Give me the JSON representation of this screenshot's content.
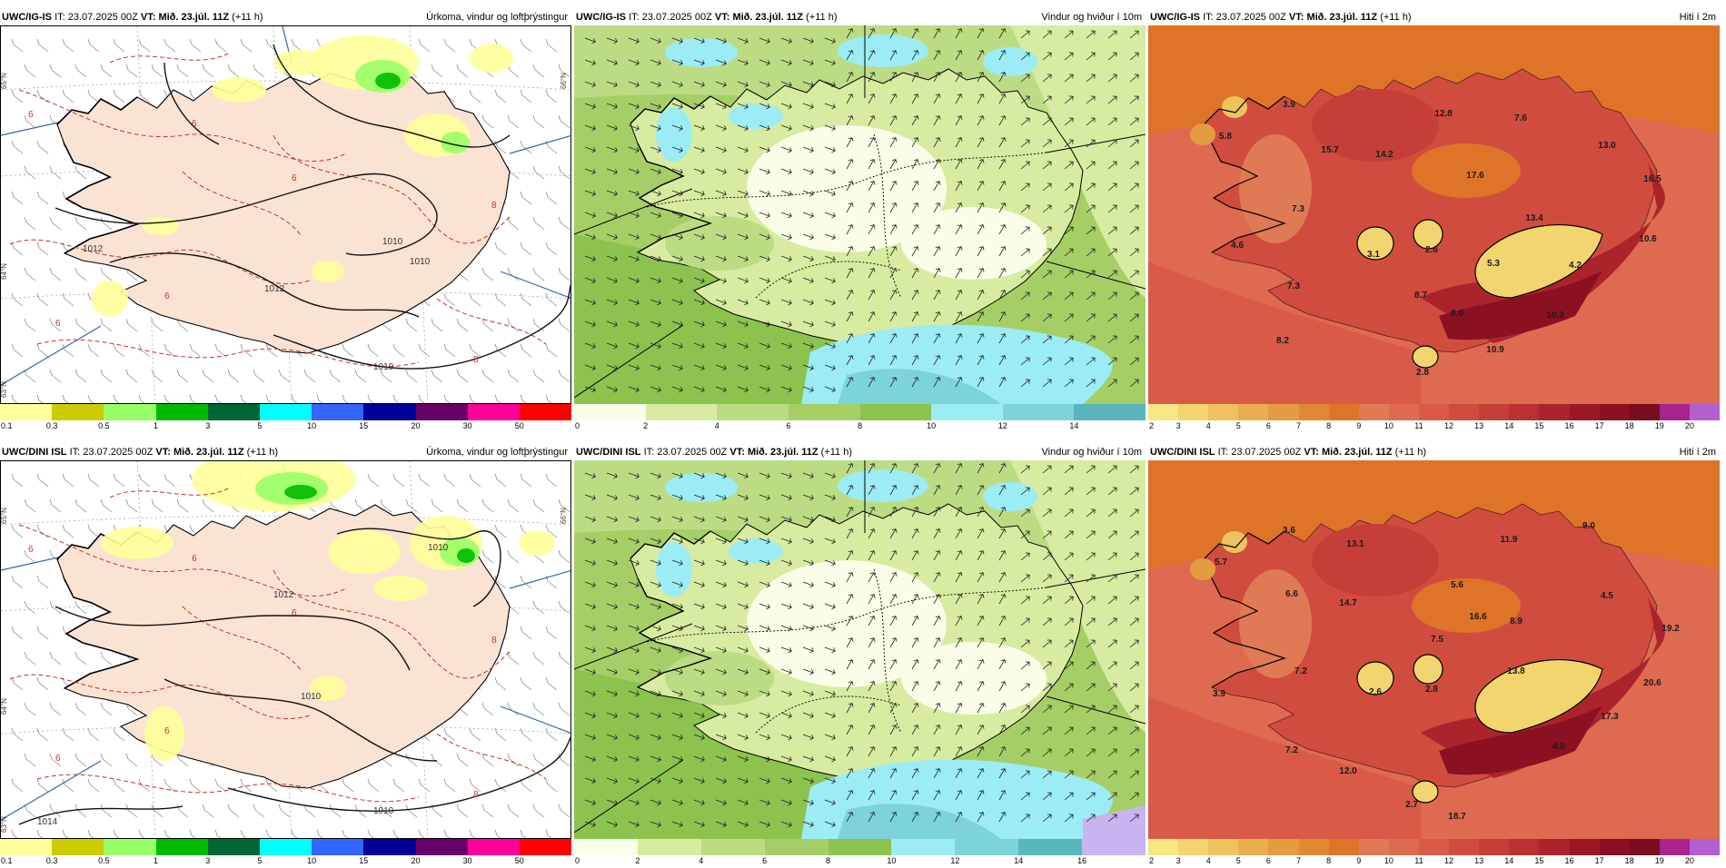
{
  "rows": [
    {
      "id": "top",
      "panels": [
        {
          "model": "UWC/IG-IS",
          "it_label": "IT:",
          "it_value": "23.07.2025 00Z",
          "vt_label": "VT:",
          "vt_value": "Mið. 23.júl. 11Z",
          "lead": "(+11 h)",
          "title": "Úrkoma, vindur og loftþrýstingur",
          "kind": "precip",
          "isobar_labels": [
            "1012",
            "1012",
            "1010",
            "1010",
            "1010"
          ],
          "grid_labels": [
            "65°N",
            "64°N",
            "63°N",
            "66°N"
          ],
          "legend_ticks": [
            "0.1",
            "0.3",
            "0.5",
            "1",
            "3",
            "5",
            "10",
            "15",
            "20",
            "30",
            "50"
          ],
          "legend_colors": [
            "#ffff99",
            "#cccc00",
            "#99ff66",
            "#00bb00",
            "#006633",
            "#00ffff",
            "#3366ff",
            "#000099",
            "#660066",
            "#ff0099",
            "#ff0000"
          ]
        },
        {
          "model": "UWC/IG-IS",
          "it_label": "IT:",
          "it_value": "23.07.2025 00Z",
          "vt_label": "VT:",
          "vt_value": "Mið. 23.júl. 11Z",
          "lead": "(+11 h)",
          "title": "Vindur og hviður í 10m",
          "kind": "wind",
          "legend_ticks": [
            "0",
            "2",
            "4",
            "6",
            "8",
            "10",
            "12",
            "14"
          ],
          "legend_colors": [
            "#fafde8",
            "#d7eca0",
            "#bcdc84",
            "#a5cf66",
            "#8cc34f",
            "#9cecf5",
            "#7dd3da",
            "#5ab6bd"
          ]
        },
        {
          "model": "UWC/IG-IS",
          "it_label": "IT:",
          "it_value": "23.07.2025 00Z",
          "vt_label": "VT:",
          "vt_value": "Mið. 23.júl. 11Z",
          "lead": "(+11 h)",
          "title": "Hiti í 2m",
          "kind": "temp",
          "values": [
            "3.9",
            "5.8",
            "15.7",
            "14.2",
            "12.8",
            "7.6",
            "13.0",
            "17.6",
            "16.5",
            "13.4",
            "7.3",
            "4.6",
            "3.1",
            "2.6",
            "5.3",
            "4.2",
            "10.6",
            "7.3",
            "8.7",
            "8.0",
            "10.3",
            "8.2",
            "10.9",
            "2.8"
          ],
          "legend_ticks": [
            "2",
            "3",
            "4",
            "5",
            "6",
            "7",
            "8",
            "9",
            "10",
            "11",
            "12",
            "13",
            "14",
            "15",
            "16",
            "17",
            "18",
            "19",
            "20"
          ],
          "legend_colors": [
            "#f7e684",
            "#f2d56e",
            "#eec35e",
            "#e9af4f",
            "#e59c41",
            "#e18833",
            "#dd7428",
            "#e07a55",
            "#de6a50",
            "#d95a47",
            "#d04c3f",
            "#c63e38",
            "#bb3131",
            "#ac242b",
            "#9b1825",
            "#8a1122",
            "#7a0d20",
            "#a8238d",
            "#b45fd0"
          ]
        }
      ]
    },
    {
      "id": "bottom",
      "panels": [
        {
          "model": "UWC/DINI ISL",
          "it_label": "IT:",
          "it_value": "23.07.2025 00Z",
          "vt_label": "VT:",
          "vt_value": "Mið. 23.júl. 11Z",
          "lead": "(+11 h)",
          "title": "Úrkoma, vindur og loftþrýstingur",
          "kind": "precip",
          "isobar_labels": [
            "1012",
            "1010",
            "1010",
            "1010",
            "1014"
          ],
          "grid_labels": [
            "65°N",
            "64°N",
            "63°N",
            "66°N"
          ],
          "legend_ticks": [
            "0.1",
            "0.3",
            "0.5",
            "1",
            "3",
            "5",
            "10",
            "15",
            "20",
            "30",
            "50"
          ],
          "legend_colors": [
            "#ffff99",
            "#cccc00",
            "#99ff66",
            "#00bb00",
            "#006633",
            "#00ffff",
            "#3366ff",
            "#000099",
            "#660066",
            "#ff0099",
            "#ff0000"
          ]
        },
        {
          "model": "UWC/DINI ISL",
          "it_label": "IT:",
          "it_value": "23.07.2025 00Z",
          "vt_label": "VT:",
          "vt_value": "Mið. 23.júl. 11Z",
          "lead": "(+11 h)",
          "title": "Vindur og hviður í 10m",
          "kind": "wind",
          "legend_ticks": [
            "0",
            "2",
            "4",
            "6",
            "8",
            "10",
            "12",
            "14",
            "16"
          ],
          "legend_colors": [
            "#fafde8",
            "#d7eca0",
            "#bcdc84",
            "#a5cf66",
            "#8cc34f",
            "#9cecf5",
            "#7dd3da",
            "#5ab6bd",
            "#c8b4f0"
          ]
        },
        {
          "model": "UWC/DINI ISL",
          "it_label": "IT:",
          "it_value": "23.07.2025 00Z",
          "vt_label": "VT:",
          "vt_value": "Mið. 23.júl. 11Z",
          "lead": "(+11 h)",
          "title": "Hiti í 2m",
          "kind": "temp",
          "values": [
            "3.6",
            "5.7",
            "13.1",
            "11.9",
            "9.0",
            "6.6",
            "14.7",
            "5.6",
            "16.6",
            "8.9",
            "4.5",
            "7.5",
            "19.2",
            "7.2",
            "13.8",
            "20.6",
            "3.9",
            "2.6",
            "2.8",
            "17.3",
            "7.2",
            "4.0",
            "12.0",
            "2.7",
            "18.7"
          ],
          "legend_ticks": [
            "2",
            "3",
            "4",
            "5",
            "6",
            "7",
            "8",
            "9",
            "10",
            "11",
            "12",
            "13",
            "14",
            "15",
            "16",
            "17",
            "18",
            "19",
            "20"
          ],
          "legend_colors": [
            "#f7e684",
            "#f2d56e",
            "#eec35e",
            "#e9af4f",
            "#e59c41",
            "#e18833",
            "#dd7428",
            "#e07a55",
            "#de6a50",
            "#d95a47",
            "#d04c3f",
            "#c63e38",
            "#bb3131",
            "#ac242b",
            "#9b1825",
            "#8a1122",
            "#7a0d20",
            "#a8238d",
            "#b45fd0"
          ]
        }
      ]
    }
  ]
}
